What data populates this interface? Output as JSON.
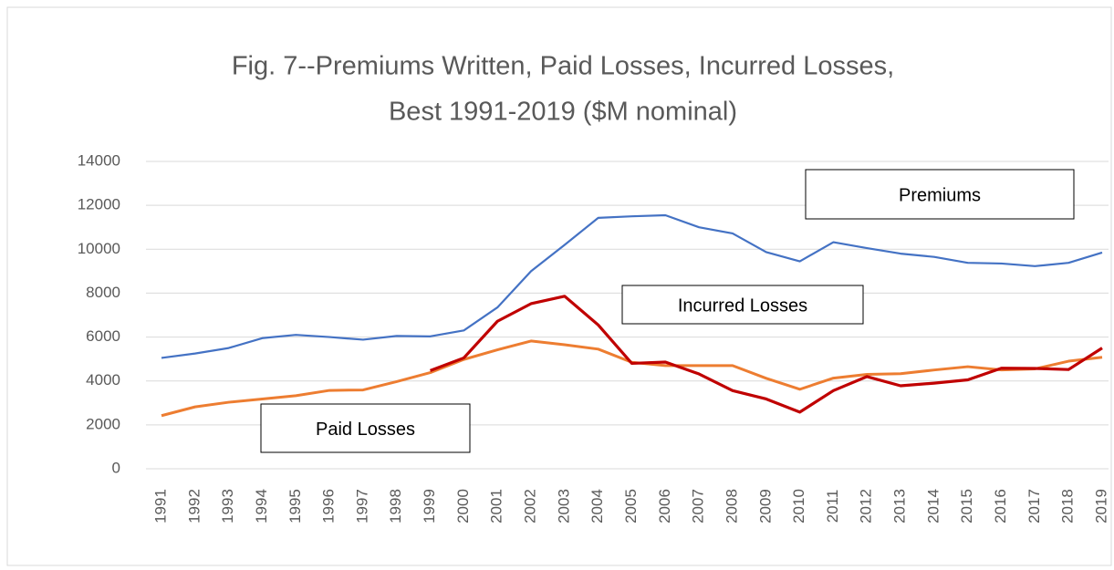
{
  "chart_data": {
    "type": "line",
    "title": [
      "Fig. 7--Premiums Written, Paid Losses, Incurred Losses,",
      "Best 1991-2019 ($M nominal)"
    ],
    "categories": [
      "1991",
      "1992",
      "1993",
      "1994",
      "1995",
      "1996",
      "1997",
      "1998",
      "1999",
      "2000",
      "2001",
      "2002",
      "2003",
      "2004",
      "2005",
      "2006",
      "2007",
      "2008",
      "2009",
      "2010",
      "2011",
      "2012",
      "2013",
      "2014",
      "2015",
      "2016",
      "2017",
      "2018",
      "2019"
    ],
    "series": [
      {
        "name": "Premiums",
        "color": "#4472c4",
        "values": [
          5050,
          5250,
          5500,
          5950,
          6100,
          6000,
          5880,
          6050,
          6030,
          6300,
          7350,
          9000,
          10200,
          11430,
          11500,
          11550,
          11000,
          10720,
          9870,
          9450,
          10320,
          10050,
          9800,
          9650,
          9380,
          9350,
          9230,
          9380,
          9850
        ]
      },
      {
        "name": "Paid Losses",
        "color": "#ed7d31",
        "values": [
          2420,
          2820,
          3030,
          3180,
          3330,
          3570,
          3590,
          3970,
          4380,
          4980,
          5420,
          5820,
          5650,
          5450,
          4850,
          4700,
          4700,
          4700,
          4120,
          3620,
          4130,
          4300,
          4330,
          4500,
          4650,
          4500,
          4550,
          4900,
          5080
        ]
      },
      {
        "name": "Incurred Losses",
        "color": "#c00000",
        "values": [
          null,
          null,
          null,
          null,
          null,
          null,
          null,
          null,
          4470,
          5050,
          6720,
          7520,
          7860,
          6550,
          4800,
          4860,
          4320,
          3560,
          3180,
          2580,
          3560,
          4200,
          3780,
          3900,
          4050,
          4580,
          4570,
          4520,
          5500
        ]
      }
    ],
    "ylim": [
      0,
      14000
    ],
    "yticks": [
      0,
      2000,
      4000,
      6000,
      8000,
      10000,
      12000,
      14000
    ],
    "grid": true
  }
}
